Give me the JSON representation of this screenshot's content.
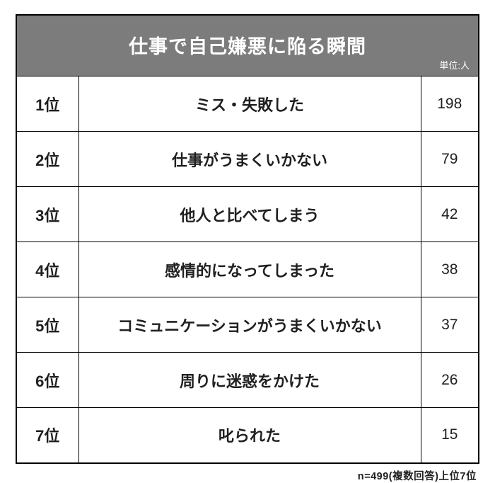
{
  "title": "仕事で自己嫌悪に陥る瞬間",
  "unit_label": "単位:人",
  "footnote": "n=499(複数回答)上位7位",
  "header_bg": "#7c7c7c",
  "header_fg": "#ffffff",
  "border_color": "#000000",
  "text_color": "#202020",
  "background_color": "#ffffff",
  "title_fontsize": 27,
  "rank_fontsize": 22,
  "reason_fontsize": 22,
  "count_fontsize": 21,
  "rows": [
    {
      "rank": "1位",
      "reason": "ミス・失敗した",
      "count": "198"
    },
    {
      "rank": "2位",
      "reason": "仕事がうまくいかない",
      "count": "79"
    },
    {
      "rank": "3位",
      "reason": "他人と比べてしまう",
      "count": "42"
    },
    {
      "rank": "4位",
      "reason": "感情的になってしまった",
      "count": "38"
    },
    {
      "rank": "5位",
      "reason": "コミュニケーションがうまくいかない",
      "count": "37"
    },
    {
      "rank": "6位",
      "reason": "周りに迷惑をかけた",
      "count": "26"
    },
    {
      "rank": "7位",
      "reason": "叱られた",
      "count": "15"
    }
  ]
}
